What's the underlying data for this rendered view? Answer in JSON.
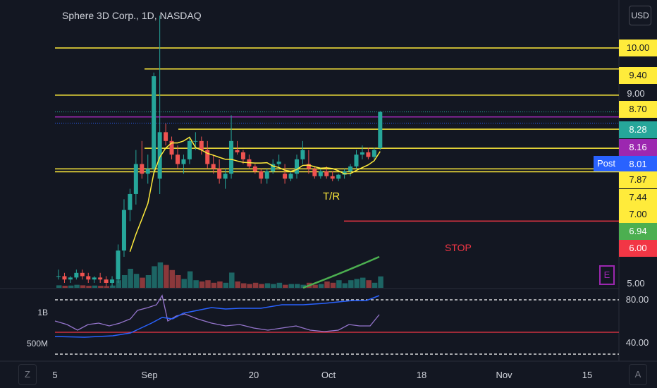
{
  "header": {
    "title": "Sphere 3D Corp., 1D, NASDAQ",
    "currency": "USD"
  },
  "chart_data": {
    "type": "candlestick",
    "price_axis": {
      "ticks": [
        "9.00",
        "5.00"
      ],
      "scale": "log"
    },
    "price_labels": [
      {
        "value": "10.00",
        "bg": "#ffeb3b",
        "fg": "#131722"
      },
      {
        "value": "9.40",
        "bg": "#ffeb3b",
        "fg": "#131722"
      },
      {
        "value": "8.70",
        "bg": "#ffeb3b",
        "fg": "#131722"
      },
      {
        "value": "8.28",
        "bg": "#26a69a",
        "fg": "#ffffff"
      },
      {
        "value": "8.16",
        "bg": "#9c27b0",
        "fg": "#ffffff"
      },
      {
        "value": "8.01",
        "bg": "#2962ff",
        "fg": "#ffffff"
      },
      {
        "value": "7.87",
        "bg": "#ffeb3b",
        "fg": "#131722"
      },
      {
        "value": "7.44",
        "bg": "#ffeb3b",
        "fg": "#131722"
      },
      {
        "value": "7.00",
        "bg": "#ffeb3b",
        "fg": "#131722"
      },
      {
        "value": "6.94",
        "bg": "#4caf50",
        "fg": "#ffffff"
      },
      {
        "value": "6.00",
        "bg": "#f23645",
        "fg": "#ffffff"
      }
    ],
    "post_label": "Post",
    "annotations": {
      "tr": "T/R",
      "stop": "STOP",
      "earnings": "E"
    },
    "x_ticks": [
      "5",
      "Sep",
      "20",
      "Oct",
      "18",
      "Nov",
      "15"
    ],
    "indicator": {
      "left_ticks": [
        "1B",
        "500M"
      ],
      "right_ticks": [
        "80.00",
        "40.00"
      ]
    },
    "candles": [
      [
        5.1,
        5.2,
        5.05,
        5.1
      ],
      [
        5.1,
        5.15,
        5.0,
        5.05
      ],
      [
        5.05,
        5.1,
        5.0,
        5.08
      ],
      [
        5.08,
        5.2,
        5.05,
        5.15
      ],
      [
        5.15,
        5.2,
        5.05,
        5.1
      ],
      [
        5.1,
        5.15,
        5.0,
        5.05
      ],
      [
        5.05,
        5.1,
        5.0,
        5.08
      ],
      [
        5.08,
        5.15,
        5.0,
        5.05
      ],
      [
        5.05,
        5.1,
        4.95,
        5.0
      ],
      [
        5.0,
        5.1,
        4.95,
        5.05
      ],
      [
        5.05,
        5.6,
        5.0,
        5.5
      ],
      [
        5.5,
        6.4,
        5.4,
        6.2
      ],
      [
        6.2,
        6.6,
        6.0,
        6.5
      ],
      [
        6.5,
        7.4,
        6.3,
        7.1
      ],
      [
        7.1,
        7.6,
        6.8,
        6.9
      ],
      [
        6.9,
        7.3,
        6.7,
        7.0
      ],
      [
        7.0,
        9.3,
        6.9,
        9.2
      ],
      [
        6.8,
        11.0,
        6.5,
        7.8
      ],
      [
        7.8,
        8.0,
        7.5,
        7.6
      ],
      [
        7.6,
        7.7,
        7.2,
        7.3
      ],
      [
        7.3,
        7.5,
        7.0,
        7.1
      ],
      [
        7.1,
        7.3,
        6.9,
        7.2
      ],
      [
        7.2,
        7.7,
        7.1,
        7.6
      ],
      [
        7.6,
        7.8,
        7.4,
        7.6
      ],
      [
        7.6,
        7.7,
        7.3,
        7.4
      ],
      [
        7.4,
        7.6,
        7.0,
        7.1
      ],
      [
        7.1,
        7.3,
        6.9,
        7.0
      ],
      [
        7.0,
        7.2,
        6.7,
        6.8
      ],
      [
        6.8,
        7.0,
        6.6,
        6.9
      ],
      [
        6.9,
        8.2,
        6.8,
        7.6
      ],
      [
        7.4,
        7.6,
        7.3,
        7.35
      ],
      [
        7.35,
        7.4,
        7.1,
        7.2
      ],
      [
        7.2,
        7.3,
        7.0,
        7.05
      ],
      [
        7.05,
        7.1,
        6.9,
        6.95
      ],
      [
        6.95,
        7.0,
        6.7,
        6.8
      ],
      [
        6.8,
        7.0,
        6.7,
        6.95
      ],
      [
        6.95,
        7.2,
        6.9,
        7.1
      ],
      [
        7.1,
        7.3,
        7.0,
        7.15
      ],
      [
        6.9,
        7.1,
        6.7,
        6.8
      ],
      [
        6.8,
        6.95,
        6.75,
        6.9
      ],
      [
        6.9,
        7.3,
        6.8,
        7.2
      ],
      [
        7.2,
        7.6,
        7.1,
        7.4
      ],
      [
        7.1,
        7.4,
        6.9,
        7.0
      ],
      [
        7.0,
        7.05,
        6.8,
        6.85
      ],
      [
        6.85,
        7.0,
        6.8,
        6.95
      ],
      [
        6.95,
        7.05,
        6.8,
        6.85
      ],
      [
        6.85,
        6.95,
        6.75,
        6.8
      ],
      [
        6.8,
        6.9,
        6.75,
        6.88
      ],
      [
        6.88,
        7.0,
        6.8,
        6.95
      ],
      [
        6.95,
        7.1,
        6.85,
        7.05
      ],
      [
        7.05,
        7.4,
        7.0,
        7.3
      ],
      [
        7.3,
        7.5,
        7.2,
        7.35
      ],
      [
        7.35,
        7.45,
        7.2,
        7.25
      ],
      [
        7.25,
        7.45,
        7.2,
        7.4
      ],
      [
        7.44,
        8.3,
        7.4,
        8.28
      ]
    ],
    "volume_relative": [
      0.1,
      0.08,
      0.09,
      0.12,
      0.1,
      0.08,
      0.09,
      0.08,
      0.07,
      0.09,
      0.3,
      0.5,
      0.75,
      0.55,
      0.4,
      0.5,
      0.85,
      1.0,
      0.9,
      0.7,
      0.5,
      0.35,
      0.65,
      0.3,
      0.25,
      0.3,
      0.2,
      0.25,
      0.2,
      0.6,
      0.25,
      0.18,
      0.15,
      0.2,
      0.15,
      0.18,
      0.15,
      0.2,
      0.12,
      0.15,
      0.15,
      0.12,
      0.2,
      0.12,
      0.15,
      0.25,
      0.2,
      0.3,
      0.18,
      0.3,
      0.35,
      0.4,
      0.3,
      0.2,
      0.45
    ]
  }
}
